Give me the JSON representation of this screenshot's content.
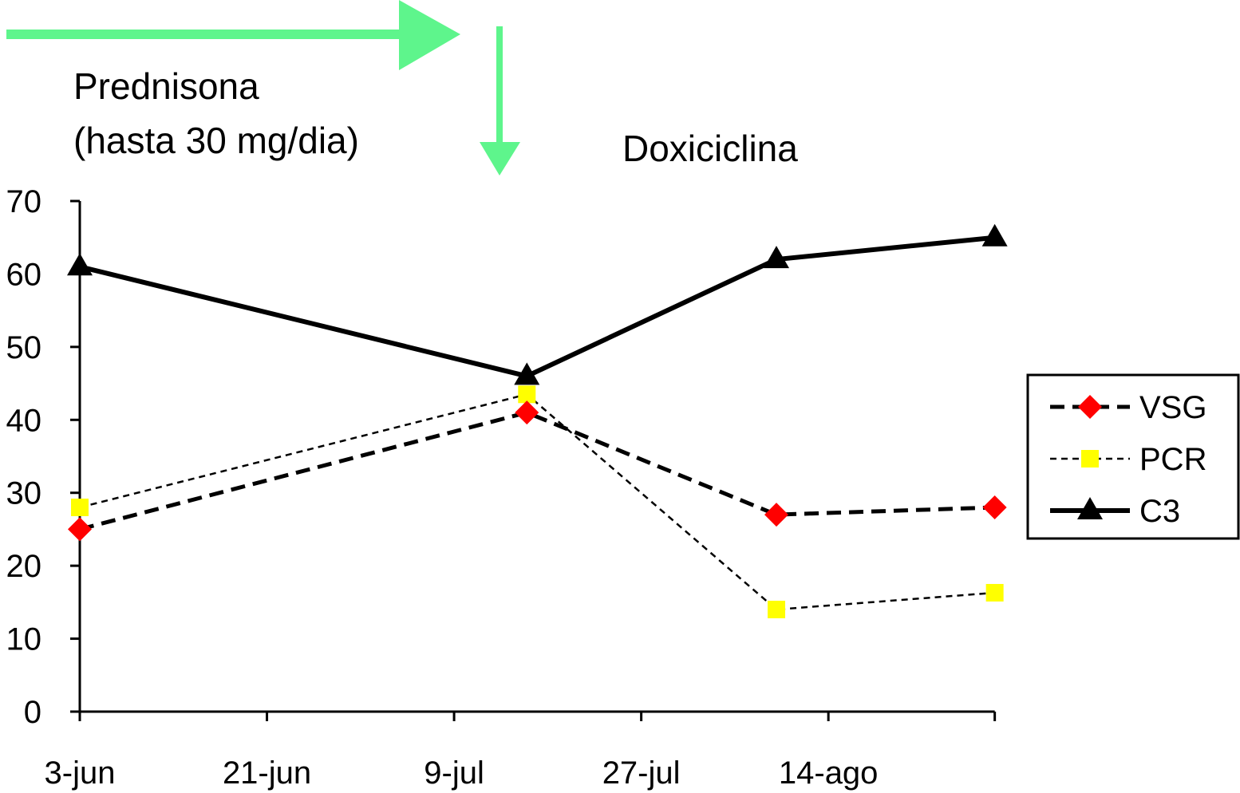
{
  "chart_data": {
    "type": "line",
    "title": "",
    "xlabel": "",
    "ylabel": "",
    "ylim": [
      0,
      70
    ],
    "yticks": [
      0,
      10,
      20,
      30,
      40,
      50,
      60,
      70
    ],
    "xlim": [
      "2000-06-03",
      "2000-08-30"
    ],
    "xticks": [
      {
        "date": "2000-06-03",
        "label": "3-jun"
      },
      {
        "date": "2000-06-21",
        "label": "21-jun"
      },
      {
        "date": "2000-07-09",
        "label": "9-jul"
      },
      {
        "date": "2000-07-27",
        "label": "27-jul"
      },
      {
        "date": "2000-08-14",
        "label": "14-ago"
      }
    ],
    "x": [
      "2000-06-03",
      "2000-07-16",
      "2000-08-09",
      "2000-08-30"
    ],
    "grid": false,
    "legend_position": "right",
    "series": [
      {
        "name": "VSG",
        "values": [
          25,
          41,
          27,
          28
        ],
        "color": "#ff0000",
        "marker": "diamond",
        "line": "dashed-bold"
      },
      {
        "name": "PCR",
        "values": [
          28,
          43.5,
          14,
          16.3
        ],
        "color": "#ffff00",
        "marker": "square",
        "line": "dashed-thin"
      },
      {
        "name": "C3",
        "values": [
          61,
          46,
          62,
          65
        ],
        "color": "#000000",
        "marker": "triangle",
        "line": "solid-bold"
      }
    ],
    "annotations": {
      "prednisona_line1": "Prednisona",
      "prednisona_line2": "(hasta 30 mg/dia)",
      "doxiciclina": "Doxiciclina",
      "arrow_color": "#5ef58c"
    }
  }
}
